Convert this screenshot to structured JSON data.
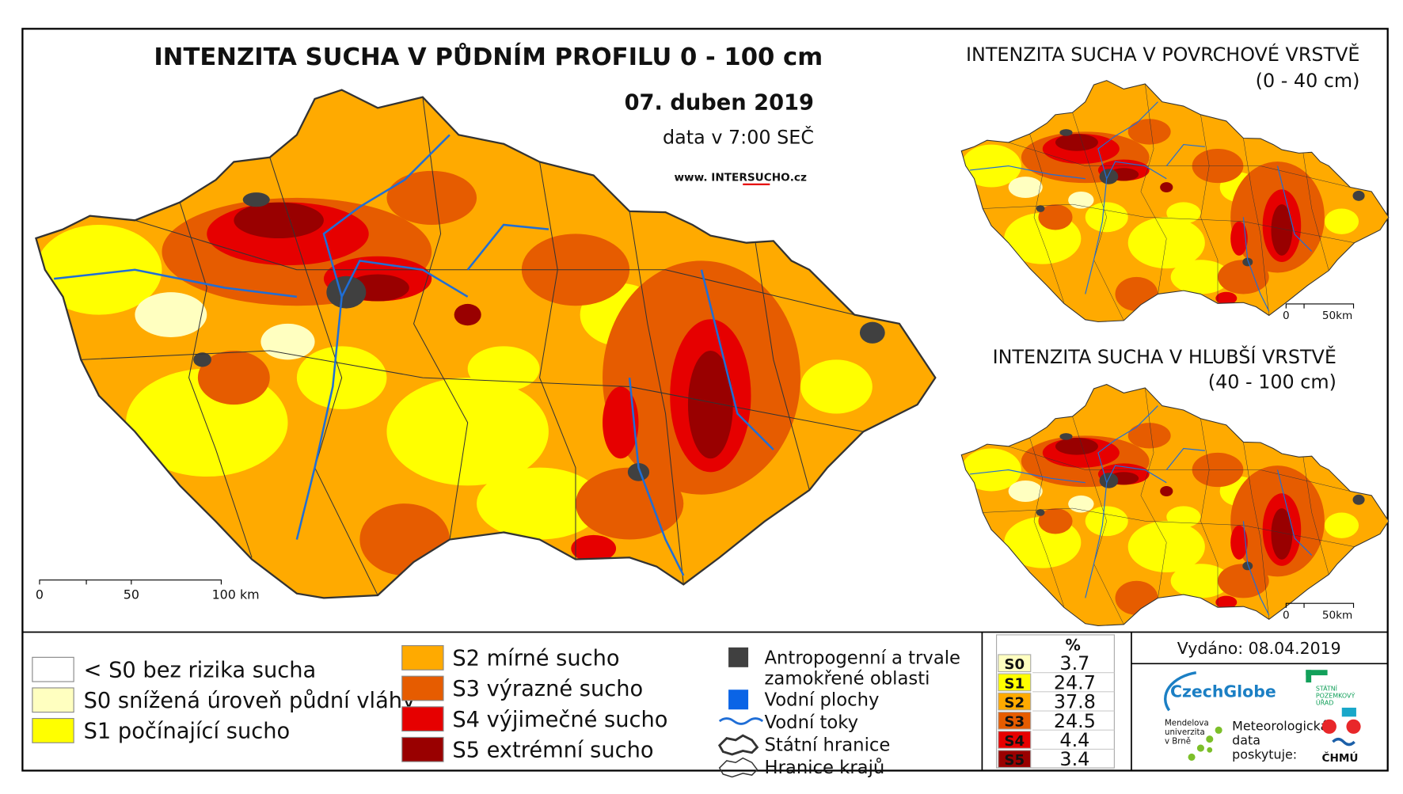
{
  "main_map": {
    "title": "INTENZITA SUCHA V PŮDNÍM PROFILU 0 - 100 cm",
    "date": "07. duben 2019",
    "data_time": "data v 7:00 SEČ",
    "website": [
      "www. INTER",
      "SUCHO",
      ".cz"
    ],
    "scale": [
      "0",
      "50",
      "100 km"
    ]
  },
  "inset_top": {
    "title": "INTENZITA SUCHA V POVRCHOVÉ VRSTVĚ",
    "subtitle": "(0 - 40 cm)",
    "scale": [
      "0",
      "50km"
    ]
  },
  "inset_bottom": {
    "title": "INTENZITA SUCHA V HLUBŠÍ VRSTVĚ",
    "subtitle": "(40 - 100 cm)",
    "scale": [
      "0",
      "50km"
    ]
  },
  "legend": {
    "classes": [
      {
        "label": "< S0 bez rizika sucha",
        "color": "#ffffff"
      },
      {
        "label": "S0 snížená úroveň půdní vláhy",
        "color": "#ffffc0"
      },
      {
        "label": "S1 počínající sucho",
        "color": "#ffff00"
      },
      {
        "label": "S2 mírné sucho",
        "color": "#ffaa00"
      },
      {
        "label": "S3 výrazné sucho",
        "color": "#e65c00"
      },
      {
        "label": "S4 výjimečné sucho",
        "color": "#e60000"
      },
      {
        "label": "S5 extrémní sucho",
        "color": "#990000"
      }
    ],
    "other": [
      {
        "label": [
          "Antropogenní a trvale",
          "zamokřené oblasti"
        ],
        "color": "#404040"
      },
      {
        "label": [
          "Vodní plochy"
        ],
        "color": "#0a64e6"
      },
      {
        "label": [
          "Vodní toky"
        ],
        "color": "#1f6ed6"
      },
      {
        "label": [
          "Státní hranice"
        ],
        "color": "#333333"
      },
      {
        "label": [
          "Hranice krajů"
        ],
        "color": "#333333"
      }
    ]
  },
  "stats": {
    "header": "%",
    "rows": [
      {
        "class": "S0",
        "value": 3.7,
        "color": "#ffffc0"
      },
      {
        "class": "S1",
        "value": 24.7,
        "color": "#ffff00"
      },
      {
        "class": "S2",
        "value": 37.8,
        "color": "#ffaa00"
      },
      {
        "class": "S3",
        "value": 24.5,
        "color": "#e65c00"
      },
      {
        "class": "S4",
        "value": 4.4,
        "color": "#e60000"
      },
      {
        "class": "S5",
        "value": 3.4,
        "color": "#990000"
      }
    ]
  },
  "issued": "Vydáno: 08.04.2019",
  "logos": {
    "czechglobe": "CzechGlobe",
    "spu": [
      "STÁTNÍ",
      "POZEMKOVÝ",
      "ÚŘAD"
    ],
    "mendelu": [
      "Mendelova",
      "univerzita",
      "v Brně"
    ],
    "chmu_note": [
      "Meteorologická",
      "data",
      "poskytuje:"
    ],
    "chmu": "ČHMÚ"
  }
}
